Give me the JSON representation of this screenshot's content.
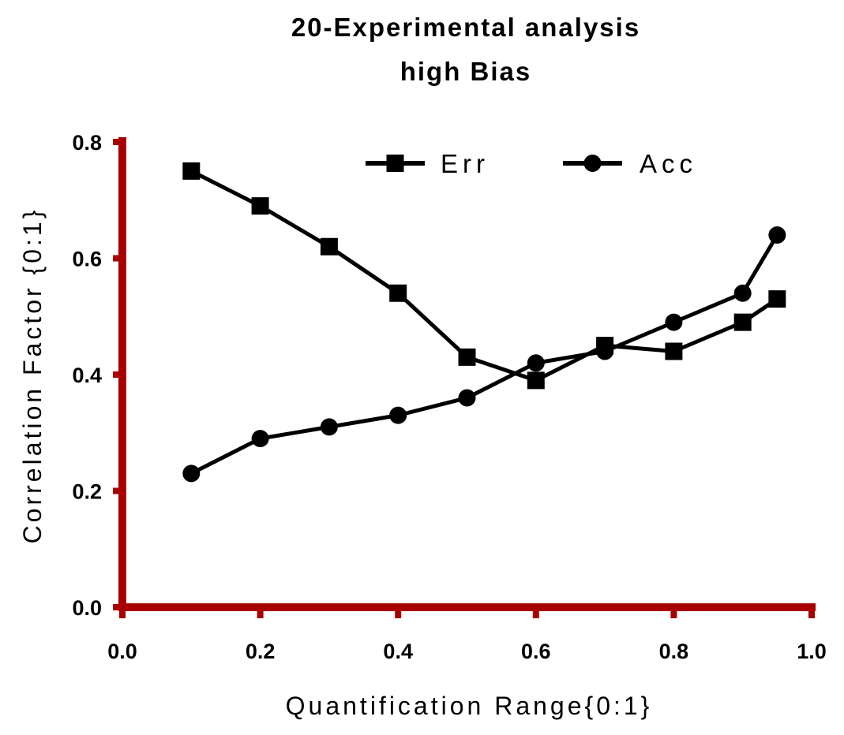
{
  "chart_data": {
    "type": "line",
    "title_lines": [
      "20-Experimental analysis",
      "high Bias"
    ],
    "xlabel": "Quantification Range{0:1}",
    "ylabel": "Correlation Factor {0:1}",
    "xlim": [
      0,
      1
    ],
    "ylim": [
      0,
      0.8
    ],
    "xticks": [
      0,
      0.2,
      0.4,
      0.6,
      0.8,
      1
    ],
    "xtick_labels": [
      "0.0",
      "0.2",
      "0.4",
      "0.6",
      "0.8",
      "1.0"
    ],
    "yticks": [
      0,
      0.2,
      0.4,
      0.6,
      0.8
    ],
    "ytick_labels": [
      "0.0",
      "0.2",
      "0.4",
      "0.6",
      "0.8"
    ],
    "axis_color": "#a80000",
    "line_color": "#000000",
    "legend_position": "top-center",
    "series": [
      {
        "name": "Err",
        "marker": "square",
        "x": [
          0.1,
          0.2,
          0.3,
          0.4,
          0.5,
          0.6,
          0.7,
          0.8,
          0.9,
          0.95
        ],
        "y": [
          0.75,
          0.69,
          0.62,
          0.54,
          0.43,
          0.39,
          0.45,
          0.44,
          0.49,
          0.53
        ]
      },
      {
        "name": "Acc",
        "marker": "circle",
        "x": [
          0.1,
          0.2,
          0.3,
          0.4,
          0.5,
          0.6,
          0.7,
          0.8,
          0.9,
          0.95
        ],
        "y": [
          0.23,
          0.29,
          0.31,
          0.33,
          0.36,
          0.42,
          0.44,
          0.49,
          0.54,
          0.64
        ]
      }
    ]
  }
}
